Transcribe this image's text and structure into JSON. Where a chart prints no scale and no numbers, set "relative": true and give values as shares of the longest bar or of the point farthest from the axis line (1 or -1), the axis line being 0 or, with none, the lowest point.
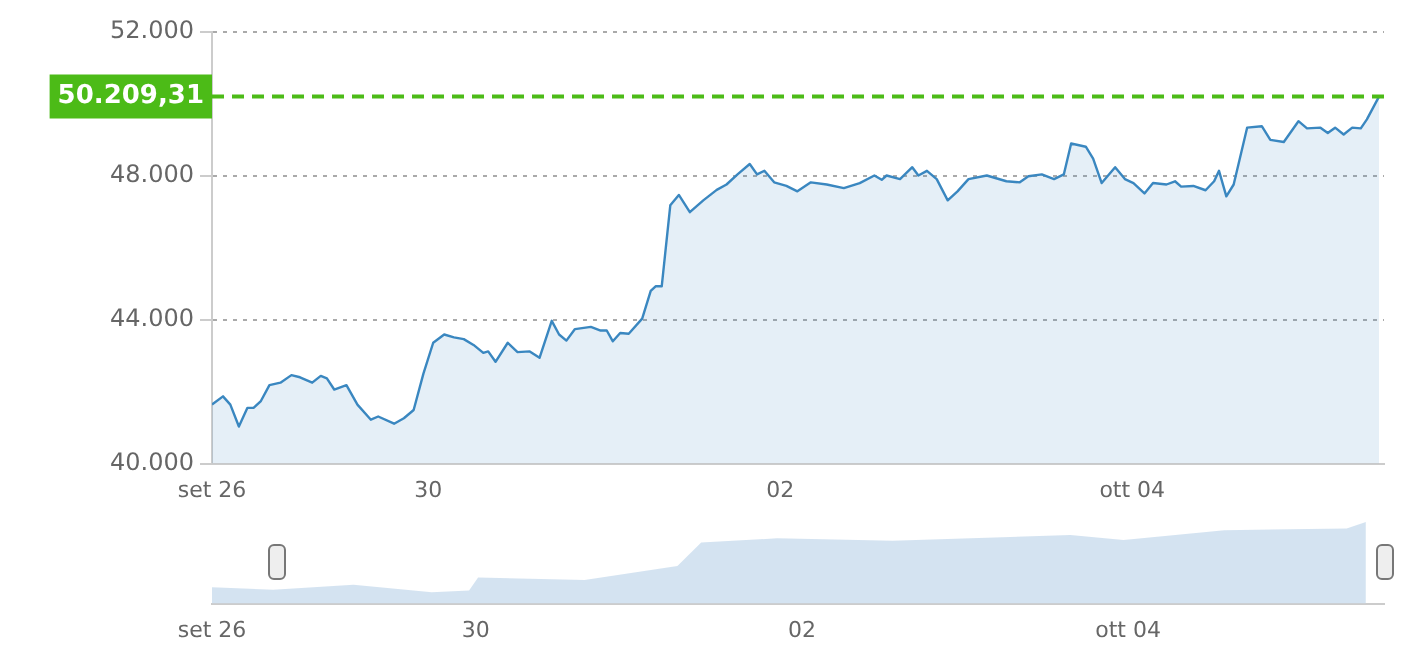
{
  "chart_data": [
    {
      "type": "area",
      "legend": false,
      "grid": "y",
      "marker": "none",
      "xlim": [
        "--09-28T18:30",
        "--10-05T10:20"
      ],
      "xticks": [
        {
          "value": "--09-28T18:30",
          "label": "set 26"
        },
        {
          "value": "--09-30T00:00",
          "label": "30"
        },
        {
          "value": "--10-02T00:00",
          "label": "02"
        },
        {
          "value": "--10-04T00:00",
          "label": "ott 04"
        }
      ],
      "ylim": [
        40000,
        52000
      ],
      "yticks": [
        {
          "value": 40000,
          "label": "40.000"
        },
        {
          "value": 44000,
          "label": "44.000"
        },
        {
          "value": 48000,
          "label": "48.000"
        },
        {
          "value": 52000,
          "label": "52.000"
        }
      ],
      "ref_lines": [
        {
          "axis": "y",
          "value": 50209.31,
          "label": "50.209,31",
          "color": "#4cbb17",
          "line_style": "dashed"
        }
      ],
      "series": [
        {
          "color": "#3a87c0",
          "x": [
            "--09-28T18:30",
            "--09-28T20:00",
            "--09-28T21:00",
            "--09-28T22:10",
            "--09-28T23:20",
            "--09-29T00:10",
            "--09-29T01:10",
            "--09-29T02:20",
            "--09-29T03:50",
            "--09-29T05:20",
            "--09-29T06:30",
            "--09-29T08:10",
            "--09-29T09:20",
            "--09-29T10:10",
            "--09-29T11:10",
            "--09-29T12:50",
            "--09-29T14:20",
            "--09-29T16:10",
            "--09-29T17:10",
            "--09-29T19:20",
            "--09-29T20:40",
            "--09-29T22:00",
            "--09-29T23:20",
            "--09-30T00:40",
            "--09-30T02:10",
            "--09-30T03:30",
            "--09-30T04:50",
            "--09-30T06:10",
            "--09-30T07:30",
            "--09-30T08:10",
            "--09-30T09:10",
            "--09-30T10:50",
            "--09-30T12:10",
            "--09-30T13:50",
            "--09-30T15:10",
            "--09-30T16:50",
            "--09-30T17:50",
            "--09-30T18:50",
            "--09-30T20:00",
            "--09-30T22:10",
            "--09-30T23:30",
            "--10-01T00:20",
            "--10-01T01:10",
            "--10-01T02:10",
            "--10-01T03:20",
            "--10-01T05:10",
            "--10-01T06:20",
            "--10-01T07:00",
            "--10-01T07:50",
            "--10-01T09:00",
            "--10-01T10:10",
            "--10-01T11:40",
            "--10-01T13:30",
            "--10-01T15:20",
            "--10-01T16:40",
            "--10-01T18:10",
            "--10-01T19:50",
            "--10-01T20:50",
            "--10-01T21:50",
            "--10-01T23:10",
            "--10-02T00:50",
            "--10-02T02:20",
            "--10-02T04:10",
            "--10-02T06:20",
            "--10-02T08:40",
            "--10-02T10:50",
            "--10-02T12:50",
            "--10-02T13:50",
            "--10-02T14:30",
            "--10-02T16:20",
            "--10-02T18:00",
            "--10-02T18:50",
            "--10-02T20:00",
            "--10-02T21:20",
            "--10-02T22:50",
            "--10-03T00:10",
            "--10-03T01:40",
            "--10-03T04:10",
            "--10-03T06:50",
            "--10-03T08:40",
            "--10-03T09:50",
            "--10-03T11:40",
            "--10-03T13:20",
            "--10-03T14:40",
            "--10-03T15:40",
            "--10-03T17:40",
            "--10-03T18:40",
            "--10-03T19:50",
            "--10-03T21:40",
            "--10-03T23:00",
            "--10-04T00:10",
            "--10-04T01:40",
            "--10-04T02:50",
            "--10-04T04:40",
            "--10-04T05:50",
            "--10-04T06:40",
            "--10-04T08:20",
            "--10-04T10:00",
            "--10-04T11:10",
            "--10-04T11:50",
            "--10-04T12:50",
            "--10-04T13:50",
            "--10-04T15:40",
            "--10-04T17:40",
            "--10-04T18:50",
            "--10-04T20:40",
            "--10-04T22:40",
            "--10-04T23:50",
            "--10-05T01:40",
            "--10-05T02:40",
            "--10-05T03:40",
            "--10-05T04:50",
            "--10-05T06:00",
            "--10-05T07:10",
            "--10-05T08:00",
            "--10-05T09:40"
          ],
          "values": [
            41640,
            41870,
            41640,
            41030,
            41550,
            41550,
            41740,
            42180,
            42250,
            42460,
            42400,
            42250,
            42440,
            42370,
            42060,
            42180,
            41640,
            41220,
            41310,
            41110,
            41260,
            41490,
            42500,
            43360,
            43590,
            43510,
            43460,
            43300,
            43080,
            43120,
            42830,
            43360,
            43100,
            43120,
            42940,
            43970,
            43590,
            43420,
            43740,
            43800,
            43700,
            43700,
            43400,
            43630,
            43610,
            44030,
            44800,
            44930,
            44930,
            47180,
            47470,
            46990,
            47320,
            47610,
            47760,
            48040,
            48330,
            48040,
            48140,
            47820,
            47720,
            47570,
            47820,
            47760,
            47660,
            47800,
            48010,
            47890,
            48010,
            47910,
            48240,
            48010,
            48140,
            47910,
            47320,
            47570,
            47910,
            48010,
            47850,
            47820,
            47990,
            48040,
            47910,
            48040,
            48900,
            48810,
            48480,
            47800,
            48240,
            47910,
            47800,
            47510,
            47800,
            47760,
            47850,
            47700,
            47720,
            47600,
            47850,
            48140,
            47430,
            47760,
            49340,
            49380,
            49000,
            48940,
            49520,
            49320,
            49340,
            49190,
            49340,
            49150,
            49340,
            49320,
            49570,
            50210
          ]
        }
      ]
    },
    {
      "type": "area",
      "relative": true,
      "legend": false,
      "grid": false,
      "marker": "none",
      "tick_labels": "x",
      "xlim": [
        "--09-28T09:10",
        "--10-05T13:40"
      ],
      "xticks": [
        {
          "value": "--09-28T09:10",
          "label": "set 26"
        },
        {
          "value": "--09-30T00:00",
          "label": "30"
        },
        {
          "value": "--10-02T00:00",
          "label": "02"
        },
        {
          "value": "--10-04T00:00",
          "label": "ott 04"
        }
      ],
      "series": [
        {
          "color": "#c9dcee",
          "x": [
            "--09-28T09:10",
            "--09-28T18:10",
            "--09-29T06:00",
            "--09-29T17:30",
            "--09-29T23:00",
            "--09-30T00:20",
            "--09-30T16:00",
            "--10-01T05:40",
            "--10-01T09:10",
            "--10-01T20:20",
            "--10-02T13:20",
            "--10-03T15:30",
            "--10-03T23:20",
            "--10-04T14:10",
            "--10-05T08:10",
            "--10-05T11:00"
          ],
          "values": [
            0.2,
            0.17,
            0.23,
            0.14,
            0.16,
            0.32,
            0.29,
            0.46,
            0.75,
            0.8,
            0.77,
            0.84,
            0.78,
            0.9,
            0.92,
            1
          ]
        }
      ]
    }
  ]
}
